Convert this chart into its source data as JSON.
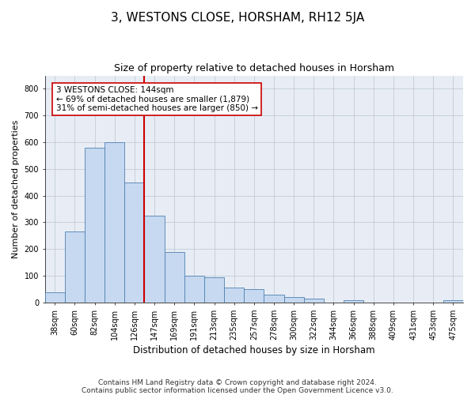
{
  "title": "3, WESTONS CLOSE, HORSHAM, RH12 5JA",
  "subtitle": "Size of property relative to detached houses in Horsham",
  "xlabel": "Distribution of detached houses by size in Horsham",
  "ylabel": "Number of detached properties",
  "footer_line1": "Contains HM Land Registry data © Crown copyright and database right 2024.",
  "footer_line2": "Contains public sector information licensed under the Open Government Licence v3.0.",
  "categories": [
    "38sqm",
    "60sqm",
    "82sqm",
    "104sqm",
    "126sqm",
    "147sqm",
    "169sqm",
    "191sqm",
    "213sqm",
    "235sqm",
    "257sqm",
    "278sqm",
    "300sqm",
    "322sqm",
    "344sqm",
    "366sqm",
    "388sqm",
    "409sqm",
    "431sqm",
    "453sqm",
    "475sqm"
  ],
  "bar_values": [
    38,
    265,
    580,
    600,
    450,
    325,
    190,
    100,
    95,
    55,
    50,
    28,
    20,
    15,
    0,
    10,
    0,
    0,
    0,
    0,
    10
  ],
  "bar_color": "#c6d9f0",
  "bar_edge_color": "#5080b0",
  "marker_index": 5,
  "marker_label_line1": "3 WESTONS CLOSE: 144sqm",
  "marker_label_line2": "← 69% of detached houses are smaller (1,879)",
  "marker_label_line3": "31% of semi-detached houses are larger (850) →",
  "marker_color": "#cc0000",
  "ylim_max": 850,
  "yticks": [
    0,
    100,
    200,
    300,
    400,
    500,
    600,
    700,
    800
  ],
  "grid_color": "#c0ccd8",
  "bg_color": "#e8edf5",
  "title_fontsize": 11,
  "subtitle_fontsize": 9,
  "ylabel_fontsize": 8,
  "xlabel_fontsize": 8.5,
  "tick_fontsize": 7,
  "annot_fontsize": 7.5,
  "footer_fontsize": 6.5
}
